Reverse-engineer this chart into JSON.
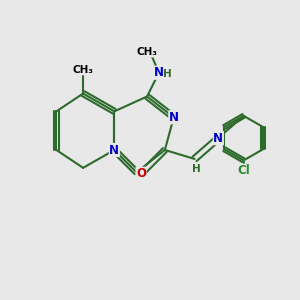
{
  "background_color": "#e8e8e8",
  "bond_color": "#2d6b2d",
  "atom_colors": {
    "N": "#0000cc",
    "O": "#cc0000",
    "Cl": "#2d8b2d",
    "C": "#000000",
    "H": "#2d6b2d"
  },
  "figsize": [
    3.0,
    3.0
  ],
  "dpi": 100
}
